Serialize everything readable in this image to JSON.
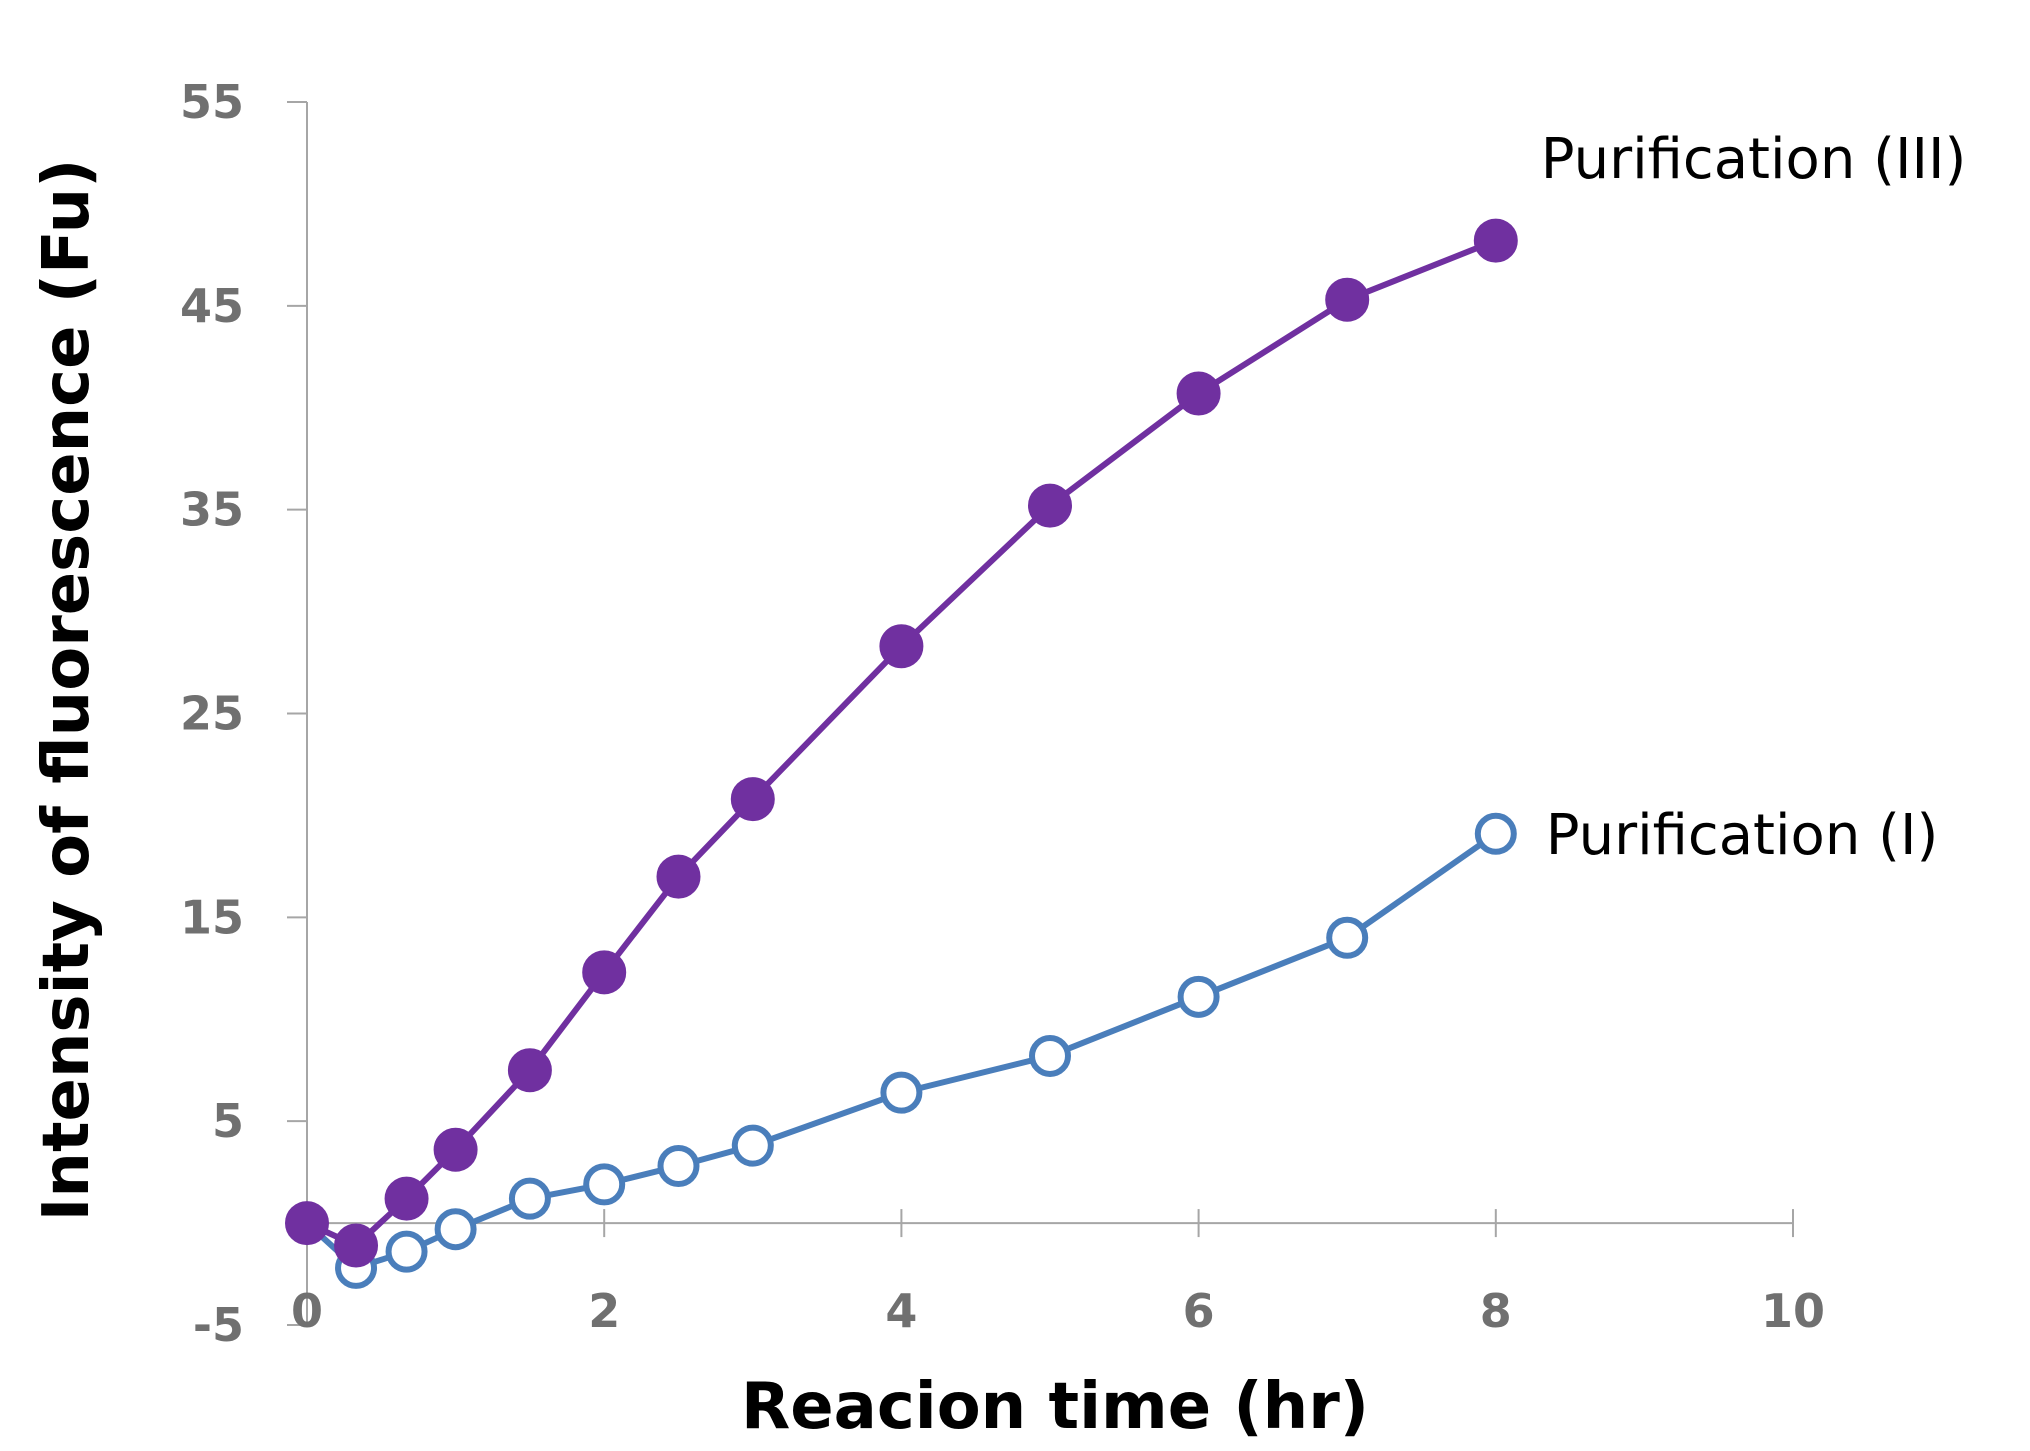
{
  "chart_data": {
    "type": "line",
    "title": "",
    "xlabel": "Reacion time (hr)",
    "ylabel": "Intensity of fluorescence (Fu)",
    "xlim": [
      0,
      10
    ],
    "ylim": [
      -5,
      55
    ],
    "xticks": [
      0,
      2,
      4,
      6,
      8,
      10
    ],
    "yticks": [
      -5,
      5,
      15,
      25,
      35,
      45,
      55
    ],
    "x_axis_crosses_y_at": 0,
    "grid": false,
    "series": [
      {
        "name": "Purification (III)",
        "color": "#7030a0",
        "marker": "filled-circle",
        "points": [
          {
            "x": 0,
            "y": 0
          },
          {
            "x": 0.33,
            "y": -1.1
          },
          {
            "x": 0.67,
            "y": 1.2
          },
          {
            "x": 1,
            "y": 3.6
          },
          {
            "x": 1.5,
            "y": 7.5
          },
          {
            "x": 2,
            "y": 12.3
          },
          {
            "x": 2.5,
            "y": 17
          },
          {
            "x": 3,
            "y": 20.8
          },
          {
            "x": 4,
            "y": 28.3
          },
          {
            "x": 5,
            "y": 35.2
          },
          {
            "x": 6,
            "y": 40.7
          },
          {
            "x": 7,
            "y": 45.3
          },
          {
            "x": 8,
            "y": 48.2
          }
        ]
      },
      {
        "name": "Purification (I)",
        "color": "#4a7ebb",
        "marker": "open-circle",
        "points": [
          {
            "x": 0,
            "y": 0
          },
          {
            "x": 0.33,
            "y": -2.2
          },
          {
            "x": 0.67,
            "y": -1.4
          },
          {
            "x": 1,
            "y": -0.3
          },
          {
            "x": 1.5,
            "y": 1.2
          },
          {
            "x": 2,
            "y": 1.9
          },
          {
            "x": 2.5,
            "y": 2.8
          },
          {
            "x": 3,
            "y": 3.8
          },
          {
            "x": 4,
            "y": 6.4
          },
          {
            "x": 5,
            "y": 8.2
          },
          {
            "x": 6,
            "y": 11.1
          },
          {
            "x": 7,
            "y": 14
          },
          {
            "x": 8,
            "y": 19.1
          }
        ]
      }
    ]
  }
}
